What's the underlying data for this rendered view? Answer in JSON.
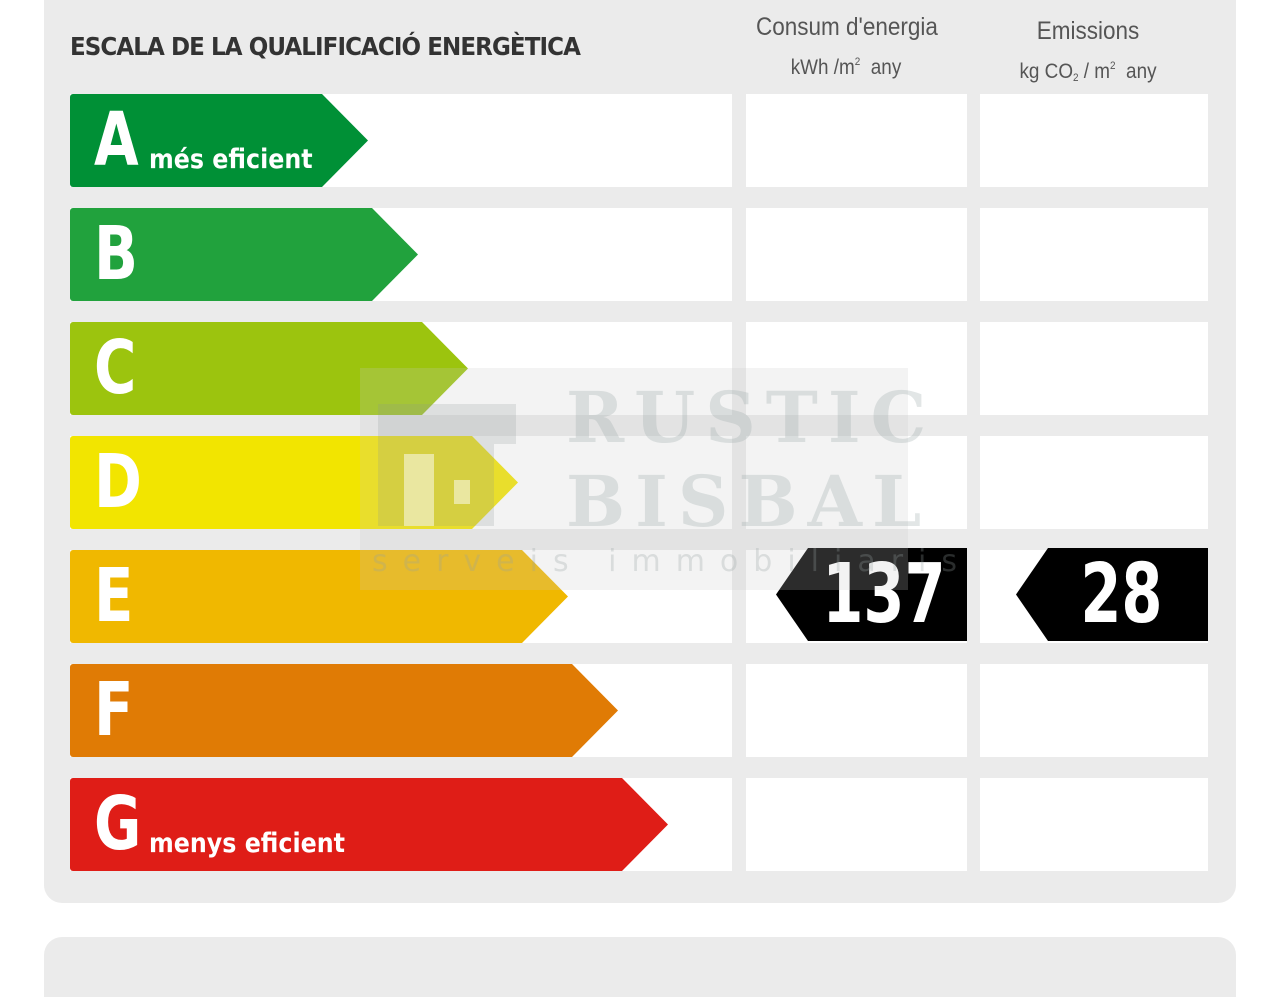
{
  "title": "ESCALA DE LA QUALIFICACIÓ ENERGÈTICA",
  "columns": {
    "energy": {
      "label": "Consum d'energia",
      "unit_pre": "kWh /m",
      "unit_sup": "2",
      "unit_post": "any"
    },
    "emissions": {
      "label": "Emissions",
      "unit_pre": "kg CO",
      "unit_sub": "2",
      "unit_mid": " / m",
      "unit_sup": "2",
      "unit_post": "any"
    }
  },
  "bands": [
    {
      "letter": "A",
      "caption": "més eficient",
      "color": "#009036"
    },
    {
      "letter": "B",
      "caption": "",
      "color": "#21a23d"
    },
    {
      "letter": "C",
      "caption": "",
      "color": "#9cc40e"
    },
    {
      "letter": "D",
      "caption": "",
      "color": "#f2e500"
    },
    {
      "letter": "E",
      "caption": "",
      "color": "#f0b800"
    },
    {
      "letter": "F",
      "caption": "",
      "color": "#e07b05"
    },
    {
      "letter": "G",
      "caption": "menys eficient",
      "color": "#df1d17"
    }
  ],
  "rating": {
    "band": "E",
    "energy_value": "137",
    "emissions_value": "28",
    "marker_color": "#000000"
  },
  "watermark": {
    "line1": "RUSTIC",
    "line2": "BISBAL",
    "line3": "serveis immobiliaris"
  }
}
